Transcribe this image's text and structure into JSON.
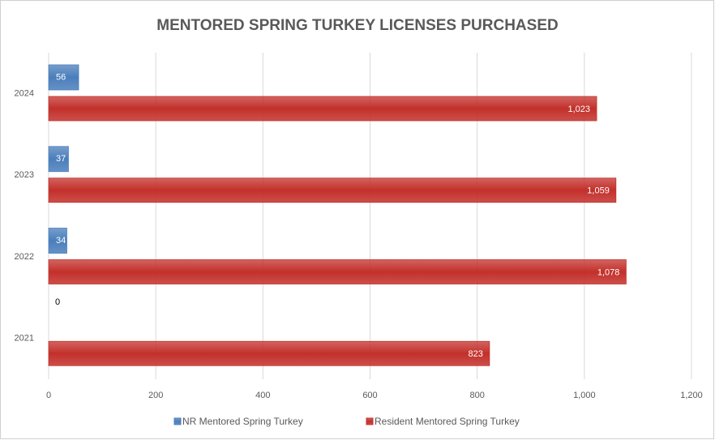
{
  "chart_data": {
    "type": "hbar",
    "title": "MENTORED SPRING TURKEY LICENSES PURCHASED",
    "categories": [
      "2021",
      "2022",
      "2023",
      "2024"
    ],
    "series": [
      {
        "name": "NR Mentored Spring Turkey",
        "color": "#4a7ebb",
        "values": [
          0,
          34,
          37,
          56
        ]
      },
      {
        "name": "Resident Mentored Spring Turkey",
        "color": "#c3302b",
        "values": [
          823,
          1078,
          1059,
          1023
        ],
        "value_labels": [
          "823",
          "1,078",
          "1,059",
          "1,023"
        ]
      }
    ],
    "xlim": [
      0,
      1200
    ],
    "xticks": [
      0,
      200,
      400,
      600,
      800,
      {
        "value": 1000,
        "label": "1,000"
      },
      {
        "value": 1200,
        "label": "1,200"
      }
    ],
    "grid": true,
    "legend": "bottom"
  }
}
